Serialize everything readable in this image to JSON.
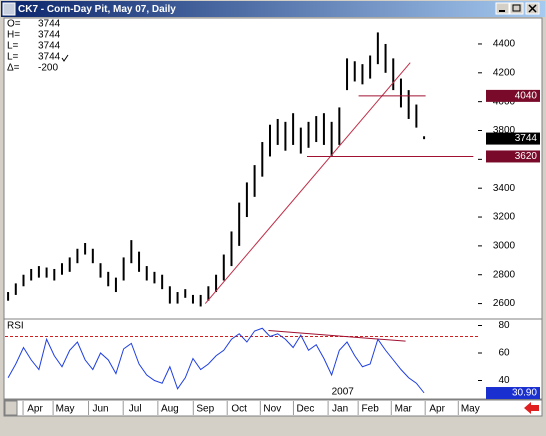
{
  "chart_data": [
    {
      "type": "ohlc",
      "title": "CK7 - Corn-Day Pit, May 07, Daily",
      "quote": [
        {
          "label": "O=",
          "value": 3744
        },
        {
          "label": "H=",
          "value": 3744
        },
        {
          "label": "L=",
          "value": 3744
        },
        {
          "label": "L=",
          "value": 3744
        },
        {
          "label": "Δ=",
          "value": -200
        }
      ],
      "xlim": [
        -0.4,
        61
      ],
      "ylim": [
        2500,
        4580
      ],
      "yticks": [
        2600,
        2800,
        3000,
        3200,
        3400,
        3600,
        3800,
        4000,
        4200,
        4400
      ],
      "series": [
        {
          "color": "#000000",
          "x": [
            0,
            1,
            2,
            3,
            4,
            5,
            6,
            7,
            8,
            9,
            10,
            11,
            12,
            13,
            14,
            15,
            16,
            17,
            18,
            19,
            20,
            21,
            22,
            23,
            24,
            25,
            26,
            27,
            28,
            29,
            30,
            31,
            32,
            33,
            34,
            35,
            36,
            37,
            38,
            39,
            40,
            41,
            42,
            43,
            44,
            45,
            46,
            47,
            48,
            49,
            50,
            51,
            52,
            53,
            54
          ],
          "high": [
            2680,
            2740,
            2800,
            2840,
            2860,
            2850,
            2840,
            2880,
            2920,
            2980,
            3020,
            2980,
            2880,
            2820,
            2780,
            2920,
            3040,
            2960,
            2860,
            2820,
            2800,
            2720,
            2680,
            2700,
            2660,
            2660,
            2720,
            2800,
            2940,
            3100,
            3300,
            3440,
            3560,
            3720,
            3840,
            3880,
            3860,
            3920,
            3820,
            3860,
            3900,
            3920,
            3860,
            3960,
            4300,
            4280,
            4260,
            4320,
            4480,
            4400,
            4300,
            4160,
            4080,
            3980,
            3760
          ],
          "low": [
            2620,
            2660,
            2720,
            2760,
            2780,
            2780,
            2760,
            2800,
            2820,
            2880,
            2940,
            2880,
            2780,
            2720,
            2680,
            2760,
            2880,
            2820,
            2760,
            2740,
            2700,
            2600,
            2600,
            2640,
            2600,
            2580,
            2620,
            2680,
            2760,
            2860,
            3000,
            3200,
            3340,
            3480,
            3620,
            3700,
            3660,
            3700,
            3640,
            3680,
            3720,
            3700,
            3620,
            3700,
            4080,
            4140,
            4120,
            4160,
            4260,
            4200,
            4080,
            3960,
            3880,
            3820,
            3740
          ]
        }
      ],
      "lines": [
        {
          "x": [
            25.6,
            52.2
          ],
          "y": [
            2600,
            4270
          ],
          "color": "#c0304a"
        },
        {
          "x": [
            45.5,
            54.2
          ],
          "y": [
            4040,
            4040
          ],
          "color": "#a01030"
        },
        {
          "x": [
            38.8,
            60.4
          ],
          "y": [
            3620,
            3620
          ],
          "color": "#a01030"
        }
      ],
      "markers": [
        {
          "value": 4040,
          "color": "#7a0a2a"
        },
        {
          "value": 3744,
          "color": "#000000"
        },
        {
          "value": 3620,
          "color": "#7a0a2a"
        }
      ]
    },
    {
      "type": "line",
      "title": "RSI",
      "xlim": [
        -0.4,
        61
      ],
      "ylim": [
        28,
        84
      ],
      "yticks": [
        40,
        60,
        80
      ],
      "xticks": [
        {
          "value": 3.5,
          "label": "Apr"
        },
        {
          "value": 7.4,
          "label": "May"
        },
        {
          "value": 12,
          "label": "Jun"
        },
        {
          "value": 16.5,
          "label": "Jul"
        },
        {
          "value": 21,
          "label": "Aug"
        },
        {
          "value": 25.6,
          "label": "Sep"
        },
        {
          "value": 30,
          "label": "Oct"
        },
        {
          "value": 34.3,
          "label": "Nov"
        },
        {
          "value": 38.6,
          "label": "Dec"
        },
        {
          "value": 43.1,
          "label": "Jan"
        },
        {
          "value": 47,
          "label": "Feb"
        },
        {
          "value": 51.3,
          "label": "Mar"
        },
        {
          "value": 55.7,
          "label": "Apr"
        },
        {
          "value": 60,
          "label": "May"
        }
      ],
      "year_label": {
        "x": 42,
        "label": "2007"
      },
      "x": [
        0,
        1,
        2,
        3,
        4,
        5,
        6,
        7,
        8,
        9,
        10,
        11,
        12,
        13,
        14,
        15,
        16,
        17,
        18,
        19,
        20,
        21,
        22,
        23,
        24,
        25,
        26,
        27,
        28,
        29,
        30,
        31,
        32,
        33,
        34,
        35,
        36,
        37,
        38,
        39,
        40,
        41,
        42,
        43,
        44,
        45,
        46,
        47,
        48,
        49,
        50,
        51,
        52,
        53,
        54
      ],
      "series": [
        {
          "color": "#1f3fe0",
          "values": [
            42,
            52,
            64,
            55,
            48,
            70,
            58,
            50,
            62,
            68,
            55,
            48,
            60,
            55,
            45,
            63,
            67,
            52,
            44,
            40,
            38,
            50,
            34,
            42,
            56,
            48,
            52,
            58,
            62,
            70,
            74,
            68,
            76,
            78,
            72,
            74,
            70,
            64,
            73,
            62,
            66,
            56,
            44,
            62,
            68,
            58,
            50,
            52,
            70,
            62,
            55,
            48,
            42,
            38,
            31
          ]
        }
      ],
      "reference": {
        "value": 72,
        "color": "#d02020"
      },
      "lines": [
        {
          "x": [
            33.8,
            51.6
          ],
          "y": [
            76.4,
            68.6
          ],
          "color": "#a01030"
        }
      ],
      "marker": {
        "value": 30.9,
        "label": "30.90",
        "color": "#1a2fd0"
      }
    }
  ]
}
